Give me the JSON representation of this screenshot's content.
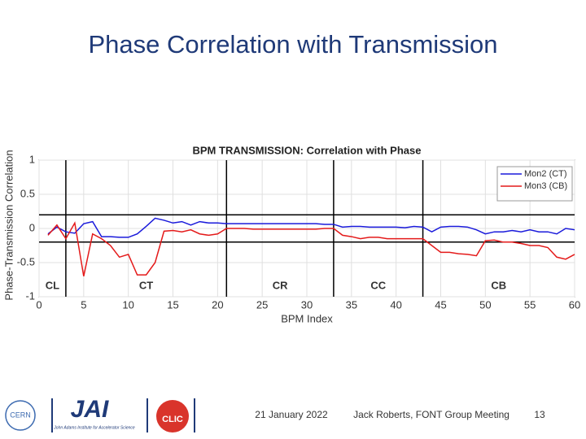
{
  "slide_title": "Phase Correlation with Transmission",
  "chart_data": {
    "type": "line",
    "title": "BPM TRANSMISSION: Correlation with Phase",
    "xlabel": "BPM Index",
    "ylabel": "Phase-Transmission Correlation",
    "x": [
      1,
      2,
      3,
      4,
      5,
      6,
      7,
      8,
      9,
      10,
      11,
      12,
      13,
      14,
      15,
      16,
      17,
      18,
      19,
      20,
      21,
      22,
      23,
      24,
      25,
      26,
      27,
      28,
      29,
      30,
      31,
      32,
      33,
      34,
      35,
      36,
      37,
      38,
      39,
      40,
      41,
      42,
      43,
      44,
      45,
      46,
      47,
      48,
      49,
      50,
      51,
      52,
      53,
      54,
      55,
      56,
      57,
      58,
      59,
      60
    ],
    "series": [
      {
        "name": "Mon2 (CT)",
        "color": "#1a1adb",
        "values": [
          -0.08,
          0.02,
          -0.05,
          -0.07,
          0.07,
          0.1,
          -0.12,
          -0.12,
          -0.13,
          -0.13,
          -0.08,
          0.03,
          0.15,
          0.12,
          0.08,
          0.1,
          0.05,
          0.1,
          0.08,
          0.08,
          0.07,
          0.07,
          0.07,
          0.07,
          0.07,
          0.07,
          0.07,
          0.07,
          0.07,
          0.07,
          0.07,
          0.06,
          0.06,
          0.02,
          0.03,
          0.03,
          0.02,
          0.02,
          0.02,
          0.02,
          0.01,
          0.03,
          0.02,
          -0.05,
          0.02,
          0.03,
          0.03,
          0.02,
          -0.02,
          -0.08,
          -0.05,
          -0.05,
          -0.03,
          -0.05,
          -0.02,
          -0.05,
          -0.05,
          -0.08,
          0.0,
          -0.02
        ]
      },
      {
        "name": "Mon3 (CB)",
        "color": "#e41a1a",
        "values": [
          -0.1,
          0.05,
          -0.15,
          0.08,
          -0.7,
          -0.08,
          -0.15,
          -0.25,
          -0.42,
          -0.38,
          -0.68,
          -0.68,
          -0.5,
          -0.04,
          -0.03,
          -0.05,
          -0.02,
          -0.08,
          -0.1,
          -0.08,
          0.0,
          0.0,
          0.0,
          -0.01,
          -0.01,
          -0.01,
          -0.01,
          -0.01,
          -0.01,
          -0.01,
          -0.01,
          0.0,
          0.0,
          -0.1,
          -0.12,
          -0.15,
          -0.13,
          -0.13,
          -0.15,
          -0.15,
          -0.15,
          -0.15,
          -0.15,
          -0.25,
          -0.35,
          -0.35,
          -0.37,
          -0.38,
          -0.4,
          -0.18,
          -0.17,
          -0.2,
          -0.2,
          -0.22,
          -0.25,
          -0.25,
          -0.28,
          -0.42,
          -0.45,
          -0.38
        ]
      }
    ],
    "xlim": [
      0,
      60
    ],
    "xticks": [
      0,
      5,
      10,
      15,
      20,
      25,
      30,
      35,
      40,
      45,
      50,
      55,
      60
    ],
    "ylim": [
      -1,
      1
    ],
    "yticks": [
      -1,
      -0.5,
      0,
      0.5,
      1
    ],
    "grid": true,
    "legend": "upper right",
    "hlines": [
      0.2,
      -0.2
    ],
    "vlines": [
      3,
      21,
      33,
      43
    ],
    "regions": [
      "CL",
      "CT",
      "CR",
      "CC",
      "CB"
    ]
  },
  "footer": {
    "date": "21 January 2022",
    "meeting": "Jack Roberts, FONT Group Meeting",
    "page": "13",
    "logos": {
      "cern": "CERN",
      "jai": "JAI",
      "jai_name": "John Adams Institute for Accelerator Science",
      "clic": "CLIC"
    }
  }
}
